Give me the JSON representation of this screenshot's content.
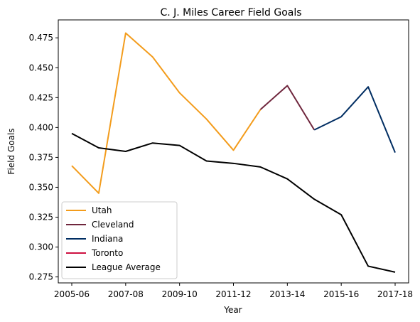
{
  "chart_data": {
    "type": "line",
    "title": "C. J. Miles Career Field Goals",
    "xlabel": "Year",
    "ylabel": "Field Goals",
    "x": [
      "2005-06",
      "2006-07",
      "2007-08",
      "2008-09",
      "2009-10",
      "2010-11",
      "2011-12",
      "2012-13",
      "2013-14",
      "2014-15",
      "2015-16",
      "2016-17",
      "2017-18"
    ],
    "x_tick_labels": [
      "2005-06",
      "2007-08",
      "2009-10",
      "2011-12",
      "2013-14",
      "2015-16",
      "2017-18"
    ],
    "ylim": [
      0.27,
      0.49
    ],
    "y_ticks": [
      0.275,
      0.3,
      0.325,
      0.35,
      0.375,
      0.4,
      0.425,
      0.45,
      0.475
    ],
    "y_tick_labels": [
      "0.275",
      "0.300",
      "0.325",
      "0.350",
      "0.375",
      "0.400",
      "0.425",
      "0.450",
      "0.475"
    ],
    "grid": false,
    "legend_position": "lower-left",
    "series": [
      {
        "name": "Utah",
        "color": "#f39c1c",
        "x": [
          "2005-06",
          "2006-07",
          "2007-08",
          "2008-09",
          "2009-10",
          "2010-11",
          "2011-12",
          "2012-13"
        ],
        "values": [
          0.368,
          0.345,
          0.479,
          0.459,
          0.429,
          0.407,
          0.381,
          0.415
        ]
      },
      {
        "name": "Cleveland",
        "color": "#6f263d",
        "x": [
          "2012-13",
          "2013-14",
          "2014-15"
        ],
        "values": [
          0.415,
          0.435,
          0.398
        ]
      },
      {
        "name": "Indiana",
        "color": "#002d62",
        "x": [
          "2014-15",
          "2015-16",
          "2016-17",
          "2017-18"
        ],
        "values": [
          0.398,
          0.409,
          0.434,
          0.379
        ]
      },
      {
        "name": "Toronto",
        "color": "#ce1141",
        "x": [],
        "values": []
      },
      {
        "name": "League Average",
        "color": "#000000",
        "x": [
          "2005-06",
          "2006-07",
          "2007-08",
          "2008-09",
          "2009-10",
          "2010-11",
          "2011-12",
          "2012-13",
          "2013-14",
          "2014-15",
          "2015-16",
          "2016-17",
          "2017-18"
        ],
        "values": [
          0.395,
          0.383,
          0.38,
          0.387,
          0.385,
          0.372,
          0.37,
          0.367,
          0.357,
          0.34,
          0.327,
          0.284,
          0.279
        ]
      }
    ]
  }
}
